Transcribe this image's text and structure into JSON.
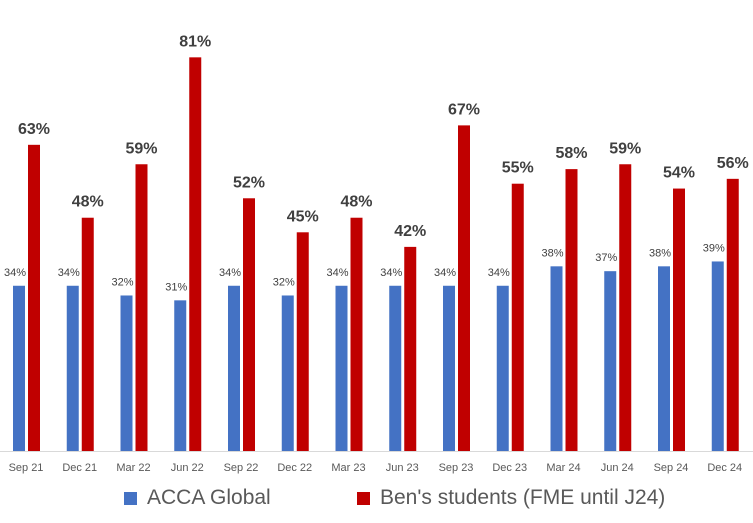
{
  "chart_data": {
    "type": "bar",
    "title": "",
    "xlabel": "",
    "ylabel": "",
    "ylim": [
      0,
      90
    ],
    "grid": false,
    "legend_position": "bottom",
    "categories": [
      "Sep 21",
      "Dec 21",
      "Mar 22",
      "Jun 22",
      "Sep 22",
      "Dec 22",
      "Mar 23",
      "Jun 23",
      "Sep 23",
      "Dec 23",
      "Mar 24",
      "Jun 24",
      "Sep 24",
      "Dec 24"
    ],
    "series": [
      {
        "name": "ACCA Global",
        "color": "#4472C4",
        "values": [
          34,
          34,
          32,
          31,
          34,
          32,
          34,
          34,
          34,
          34,
          38,
          37,
          38,
          39
        ],
        "labels": [
          "34%",
          "34%",
          "32%",
          "31%",
          "34%",
          "32%",
          "34%",
          "34%",
          "34%",
          "34%",
          "38%",
          "37%",
          "38%",
          "39%"
        ]
      },
      {
        "name": "Ben's students (FME until J24)",
        "color": "#C00000",
        "values": [
          63,
          48,
          59,
          81,
          52,
          45,
          48,
          42,
          67,
          55,
          58,
          59,
          54,
          56
        ],
        "labels": [
          "63%",
          "48%",
          "59%",
          "81%",
          "52%",
          "45%",
          "48%",
          "42%",
          "67%",
          "55%",
          "58%",
          "59%",
          "54%",
          "56%"
        ]
      }
    ]
  }
}
